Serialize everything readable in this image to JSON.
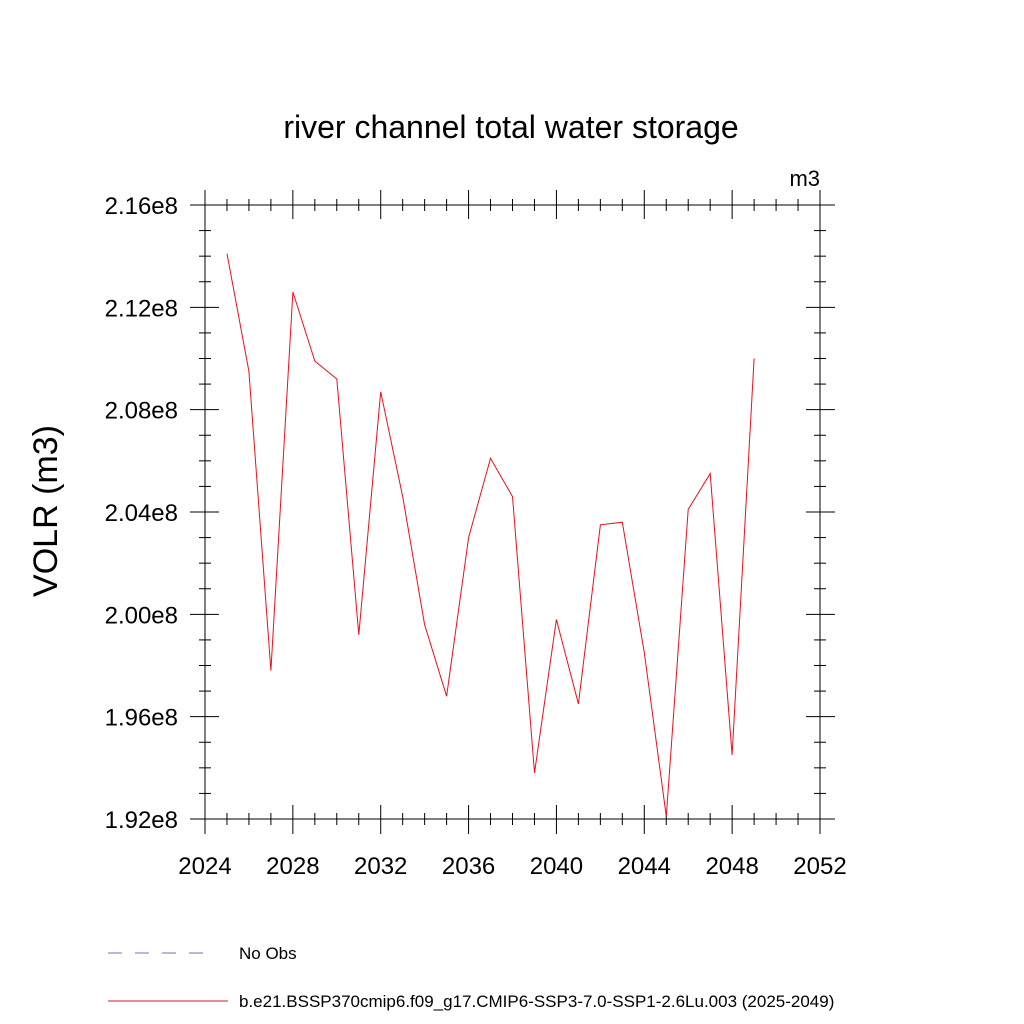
{
  "chart_data": {
    "type": "line",
    "title": "river channel total water storage",
    "units": "m3",
    "ylabel": "VOLR  (m3)",
    "xlabel": "",
    "xlim": [
      2024,
      2052
    ],
    "ylim": [
      192000000,
      216000000
    ],
    "x_ticks": [
      2024,
      2028,
      2032,
      2036,
      2040,
      2044,
      2048,
      2052
    ],
    "x_tick_labels": [
      "2024",
      "2028",
      "2032",
      "2036",
      "2040",
      "2044",
      "2048",
      "2052"
    ],
    "y_ticks": [
      192000000,
      196000000,
      200000000,
      204000000,
      208000000,
      212000000,
      216000000
    ],
    "y_tick_labels": [
      "1.92e8",
      "1.96e8",
      "2.00e8",
      "2.04e8",
      "2.08e8",
      "2.12e8",
      "2.16e8"
    ],
    "grid": false,
    "legend_position": "bottom",
    "series": [
      {
        "name": "No Obs",
        "style": "dashed",
        "color": "#7f6fb0",
        "x": [],
        "y": []
      },
      {
        "name": "b.e21.BSSP370cmip6.f09_g17.CMIP6-SSP3-7.0-SSP1-2.6Lu.003 (2025-2049)",
        "style": "solid",
        "color": "#e8101a",
        "x": [
          2025,
          2026,
          2027,
          2028,
          2029,
          2030,
          2031,
          2032,
          2033,
          2034,
          2035,
          2036,
          2037,
          2038,
          2039,
          2040,
          2041,
          2042,
          2043,
          2044,
          2045,
          2046,
          2047,
          2048,
          2049
        ],
        "y": [
          214100000,
          209500000,
          197800000,
          212600000,
          209900000,
          209200000,
          199200000,
          208700000,
          204600000,
          199600000,
          196800000,
          203000000,
          206100000,
          204600000,
          193800000,
          199800000,
          196500000,
          203500000,
          203600000,
          198500000,
          192100000,
          204100000,
          205500000,
          194500000,
          210000000
        ]
      }
    ]
  }
}
